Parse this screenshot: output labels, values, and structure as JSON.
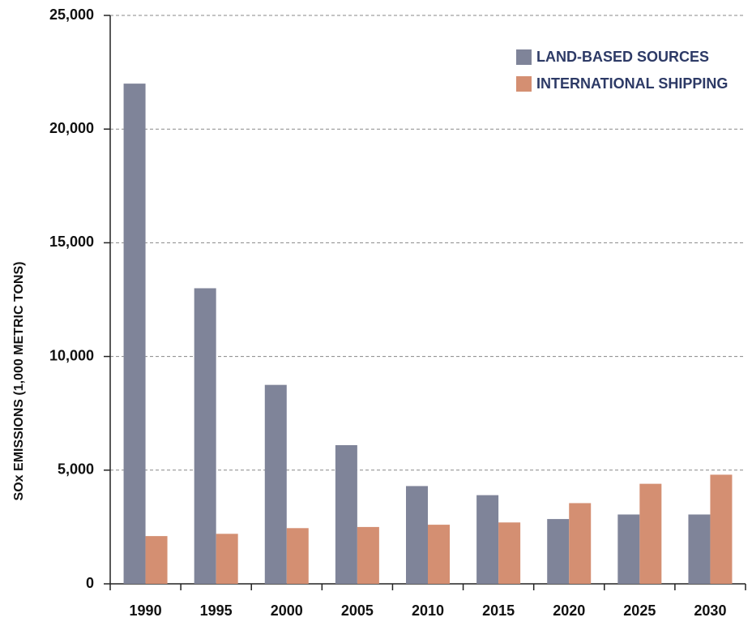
{
  "chart_data": {
    "type": "bar",
    "y_label": "SOx EMISSIONS (1,000 METRIC TONS)",
    "categories": [
      "1990",
      "1995",
      "2000",
      "2005",
      "2010",
      "2015",
      "2020",
      "2025",
      "2030"
    ],
    "series": [
      {
        "name": "LAND-BASED SOURCES",
        "color": "#7f8499",
        "values": [
          22000,
          13000,
          8750,
          6100,
          4300,
          3900,
          2850,
          3050,
          3050
        ]
      },
      {
        "name": "INTERNATIONAL SHIPPING",
        "color": "#d48f72",
        "values": [
          2100,
          2200,
          2450,
          2500,
          2600,
          2700,
          3550,
          4400,
          4800
        ]
      }
    ],
    "ylim": [
      0,
      25000
    ],
    "yticks": [
      0,
      {
        "value": 5000,
        "label": "5,000"
      },
      {
        "value": 10000,
        "label": "10,000"
      },
      {
        "value": 15000,
        "label": "15,000"
      },
      {
        "value": 20000,
        "label": "20,000"
      },
      {
        "value": 25000,
        "label": "25,000"
      }
    ],
    "grid": true,
    "legend": "upper right"
  }
}
